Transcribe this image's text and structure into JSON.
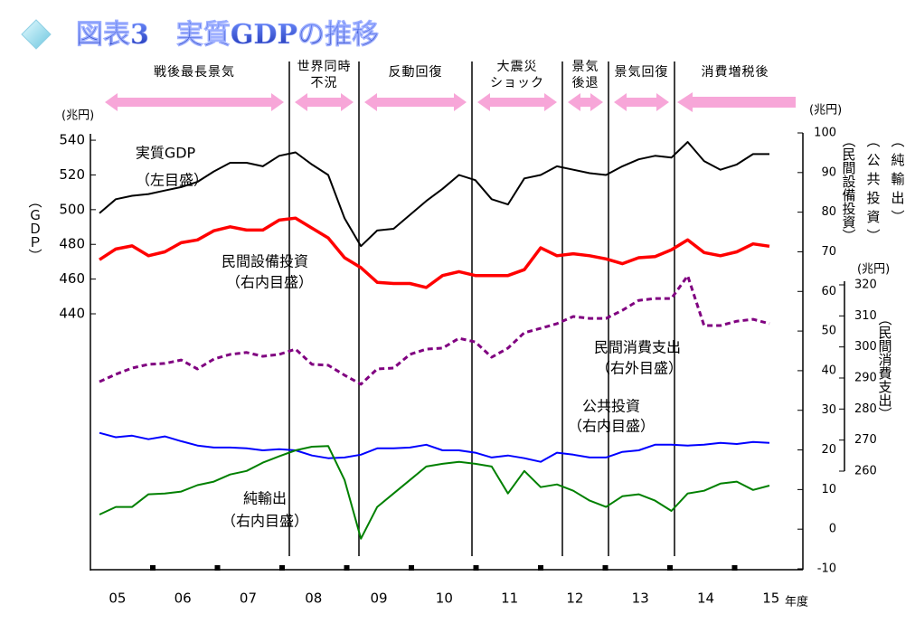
{
  "chart_data": {
    "type": "line",
    "title": "図表3　実質GDPの推移",
    "categories": [
      null,
      null,
      null,
      null,
      null,
      null,
      null,
      null,
      null,
      null,
      null,
      null,
      null,
      null,
      null,
      null,
      null,
      null,
      null,
      null,
      null,
      null,
      null,
      null,
      null,
      null,
      null,
      null,
      null,
      null,
      null,
      null,
      null,
      null,
      null,
      null,
      null,
      null,
      null,
      null,
      null,
      null
    ],
    "year_labels": [
      "05",
      "06",
      "07",
      "08",
      "09",
      "10",
      "11",
      "12",
      "13",
      "14",
      "15"
    ],
    "x_unit": "年度",
    "periods": [
      {
        "label": [
          "戦後最長景気"
        ]
      },
      {
        "label": [
          "世界同時",
          "不況"
        ]
      },
      {
        "label": [
          "反動回復"
        ]
      },
      {
        "label": [
          "大震災",
          "ショック"
        ]
      },
      {
        "label": [
          "景気",
          "後退"
        ]
      },
      {
        "label": [
          "景気回復"
        ]
      },
      {
        "label": [
          "消費増税後"
        ]
      }
    ],
    "ylim": [
      293.1,
      544.2
    ],
    "yticks": [
      440,
      460,
      480,
      500,
      520,
      540
    ],
    "y_unit": "(兆円)",
    "y_title": "（ＧＤＰ）",
    "y2lim": [
      -10,
      100
    ],
    "y2ticks": [
      -10,
      0,
      10,
      20,
      30,
      40,
      50,
      60,
      70,
      80,
      90,
      100
    ],
    "y2_unit": "(兆円)",
    "y2_titles": [
      "（民間設備投資）",
      "（公共投資）",
      "（純輸出）"
    ],
    "y3lim": [
      260,
      320
    ],
    "y3ticks": [
      260,
      270,
      280,
      290,
      300,
      310,
      320
    ],
    "y3_unit": "(兆円)",
    "y3_title": "（民間消費支出）",
    "series": [
      {
        "name": "実質GDP",
        "scale_note": "（左目盛）",
        "axis": "y",
        "color": "#000000",
        "width": 2,
        "dashed": false,
        "values": [
          498,
          506,
          508,
          509,
          511,
          513,
          516,
          522,
          527,
          527,
          525,
          531,
          533,
          526,
          520,
          495,
          479,
          488,
          489,
          497,
          505,
          512,
          520,
          517,
          506,
          503,
          518,
          520,
          525,
          523,
          521,
          520,
          525,
          529,
          531,
          530,
          539,
          528,
          523,
          526,
          532,
          532
        ]
      },
      {
        "name": "民間設備投資",
        "scale_note": "（右内目盛）",
        "axis": "y2",
        "color": "#ff0000",
        "width": 3.5,
        "dashed": false,
        "values": [
          68,
          70.7,
          71.5,
          69,
          70,
          72.3,
          73,
          75.3,
          76.3,
          75.5,
          75.5,
          78,
          78.5,
          76,
          73.5,
          68.5,
          66,
          62.3,
          62,
          62,
          61,
          64,
          65,
          64,
          64,
          64,
          65.5,
          71,
          69,
          69.5,
          69,
          68.2,
          67,
          68.5,
          68.8,
          70.5,
          73,
          69.8,
          69,
          70,
          72,
          71.4
        ]
      },
      {
        "name": "民間消費支出",
        "scale_note": "（右外目盛）",
        "axis": "y3",
        "color": "#800080",
        "width": 3,
        "dashed": true,
        "values": [
          288.8,
          291.2,
          293.2,
          294.4,
          294.7,
          295.8,
          292.9,
          296.1,
          297.6,
          298.2,
          297,
          297.6,
          299.3,
          294.4,
          294.1,
          290.9,
          288,
          292.9,
          293.2,
          297.6,
          299.3,
          299.6,
          302.8,
          301.6,
          296.7,
          299.6,
          304.6,
          306,
          307.5,
          309.8,
          309.2,
          309.2,
          311.8,
          315,
          315.6,
          315.6,
          322.9,
          306.9,
          306.9,
          308.3,
          308.9,
          307.5
        ]
      },
      {
        "name": "公共投資",
        "scale_note": "（右内目盛）",
        "axis": "y2",
        "color": "#0000ff",
        "width": 2,
        "dashed": false,
        "values": [
          24.3,
          23.2,
          23.6,
          22.7,
          23.4,
          22.2,
          21.1,
          20.6,
          20.6,
          20.4,
          19.9,
          20.2,
          19.9,
          18.6,
          17.9,
          18.1,
          18.8,
          20.4,
          20.4,
          20.6,
          21.3,
          19.9,
          19.9,
          19.3,
          18.1,
          18.6,
          17.9,
          17,
          19.3,
          18.8,
          18.1,
          18.1,
          19.5,
          19.9,
          21.3,
          21.3,
          21.1,
          21.3,
          21.8,
          21.5,
          22,
          21.8
        ]
      },
      {
        "name": "純輸出",
        "scale_note": "（右内目盛）",
        "axis": "y2",
        "color": "#008000",
        "width": 2,
        "dashed": false,
        "values": [
          3.7,
          5.6,
          5.6,
          8.8,
          9,
          9.5,
          11.1,
          12,
          13.8,
          14.7,
          16.8,
          18.4,
          19.9,
          20.8,
          21,
          12.4,
          -2.4,
          5.6,
          9,
          12.4,
          15.8,
          16.5,
          17,
          16.5,
          15.8,
          9,
          14.7,
          10.6,
          11.3,
          9.7,
          7.2,
          5.6,
          8.3,
          8.8,
          7.2,
          4.6,
          9,
          9.7,
          11.5,
          12,
          9.9,
          11
        ]
      }
    ]
  }
}
